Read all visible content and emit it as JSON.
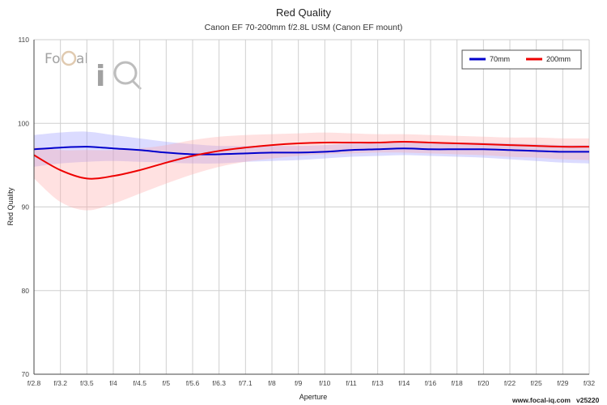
{
  "chart_data": {
    "type": "line",
    "title": "Red Quality",
    "subtitle": "Canon EF 70-200mm f/2.8L USM (Canon EF mount)",
    "xlabel": "Aperture",
    "ylabel": "Red Quality",
    "categories": [
      "f/2.8",
      "f/3.2",
      "f/3.5",
      "f/4",
      "f/4.5",
      "f/5",
      "f/5.6",
      "f/6.3",
      "f/7.1",
      "f/8",
      "f/9",
      "f/10",
      "f/11",
      "f/13",
      "f/14",
      "f/16",
      "f/18",
      "f/20",
      "f/22",
      "f/25",
      "f/29",
      "f/32"
    ],
    "ylim": [
      70,
      110
    ],
    "yticks": [
      "70",
      "80",
      "90",
      "100",
      "110"
    ],
    "grid": true,
    "legend_position": "top-right",
    "series": [
      {
        "name": "70mm",
        "color": "#0000cc",
        "band_color": "#9999ff",
        "values": [
          96.9,
          97.1,
          97.2,
          97.0,
          96.8,
          96.5,
          96.3,
          96.3,
          96.4,
          96.5,
          96.5,
          96.6,
          96.8,
          96.9,
          97.0,
          96.9,
          96.9,
          96.9,
          96.8,
          96.7,
          96.6,
          96.6
        ],
        "upper": [
          98.6,
          98.9,
          99.0,
          98.6,
          98.2,
          97.8,
          97.5,
          97.3,
          97.3,
          97.3,
          97.3,
          97.4,
          97.6,
          97.7,
          97.8,
          97.7,
          97.7,
          97.7,
          97.6,
          97.5,
          97.4,
          97.4
        ],
        "lower": [
          94.8,
          95.2,
          95.4,
          95.5,
          95.4,
          95.3,
          95.2,
          95.2,
          95.4,
          95.5,
          95.6,
          95.8,
          96.0,
          96.1,
          96.2,
          96.1,
          96.0,
          95.9,
          95.7,
          95.5,
          95.3,
          95.2
        ]
      },
      {
        "name": "200mm",
        "color": "#ee0000",
        "band_color": "#ffaaaa",
        "values": [
          96.2,
          94.4,
          93.4,
          93.7,
          94.4,
          95.3,
          96.1,
          96.7,
          97.1,
          97.4,
          97.6,
          97.7,
          97.7,
          97.7,
          97.8,
          97.7,
          97.6,
          97.5,
          97.4,
          97.3,
          97.2,
          97.2
        ],
        "upper": [
          97.2,
          96.8,
          96.8,
          96.8,
          97.0,
          97.4,
          98.0,
          98.4,
          98.6,
          98.7,
          98.8,
          98.9,
          98.8,
          98.7,
          98.7,
          98.6,
          98.5,
          98.4,
          98.3,
          98.3,
          98.2,
          98.2
        ],
        "lower": [
          93.4,
          90.6,
          89.6,
          90.4,
          91.6,
          92.8,
          93.9,
          94.8,
          95.4,
          95.8,
          96.1,
          96.3,
          96.4,
          96.5,
          96.5,
          96.4,
          96.3,
          96.2,
          96.0,
          95.9,
          95.7,
          95.6
        ]
      }
    ]
  },
  "logo": {
    "brand_text": "FoCal iQ"
  },
  "footer": {
    "site": "www.focal-iq.com",
    "version": "v25220"
  }
}
